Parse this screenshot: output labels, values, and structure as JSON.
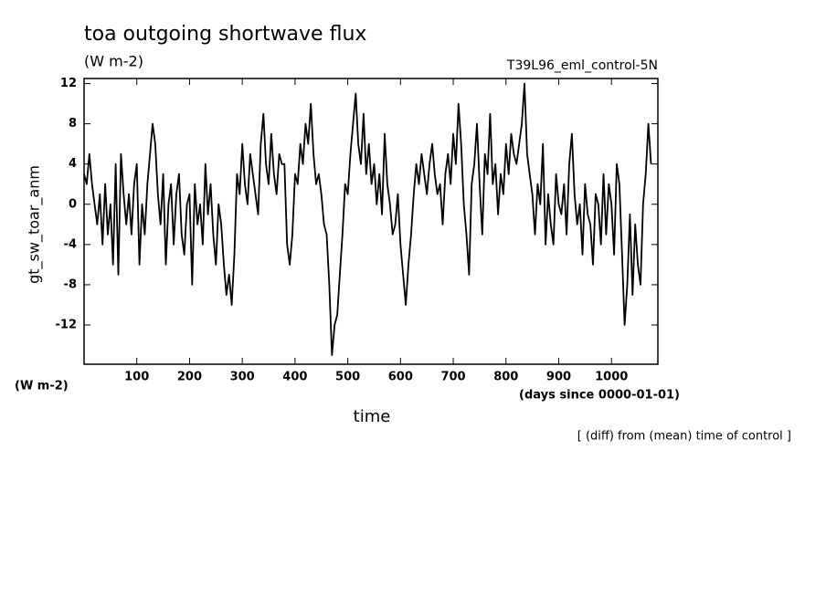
{
  "chart_data": {
    "type": "line",
    "title": "toa outgoing shortwave flux",
    "subtitle": "(W m-2)",
    "run_label": "T39L96_eml_control-5N",
    "y_label": "gt_sw_toar_anm",
    "y_unit": "(W m-2)",
    "x_label": "time",
    "x_unit": "(days since 0000-01-01)",
    "note": "[ (diff) from (mean) time of control ]",
    "color": "#000000",
    "xlim": [
      0,
      1088
    ],
    "ylim": [
      -15.9,
      12.5
    ],
    "xticks": [
      100,
      200,
      300,
      400,
      500,
      600,
      700,
      800,
      900,
      1000
    ],
    "yticks": [
      -12,
      -8,
      -4,
      0,
      4,
      8,
      12
    ],
    "x": [
      0,
      5,
      10,
      15,
      20,
      25,
      30,
      35,
      40,
      45,
      50,
      55,
      60,
      65,
      70,
      75,
      80,
      85,
      90,
      95,
      100,
      105,
      110,
      115,
      120,
      125,
      130,
      135,
      140,
      145,
      150,
      155,
      160,
      165,
      170,
      175,
      180,
      185,
      190,
      195,
      200,
      205,
      210,
      215,
      220,
      225,
      230,
      235,
      240,
      245,
      250,
      255,
      260,
      265,
      270,
      275,
      280,
      285,
      290,
      295,
      300,
      305,
      310,
      315,
      320,
      325,
      330,
      335,
      340,
      345,
      350,
      355,
      360,
      365,
      370,
      375,
      380,
      385,
      390,
      395,
      400,
      405,
      410,
      415,
      420,
      425,
      430,
      435,
      440,
      445,
      450,
      455,
      460,
      465,
      470,
      475,
      480,
      485,
      490,
      495,
      500,
      505,
      510,
      515,
      520,
      525,
      530,
      535,
      540,
      545,
      550,
      555,
      560,
      565,
      570,
      575,
      580,
      585,
      590,
      595,
      600,
      605,
      610,
      615,
      620,
      625,
      630,
      635,
      640,
      645,
      650,
      655,
      660,
      665,
      670,
      675,
      680,
      685,
      690,
      695,
      700,
      705,
      710,
      715,
      720,
      725,
      730,
      735,
      740,
      745,
      750,
      755,
      760,
      765,
      770,
      775,
      780,
      785,
      790,
      795,
      800,
      805,
      810,
      815,
      820,
      825,
      830,
      835,
      840,
      845,
      850,
      855,
      860,
      865,
      870,
      875,
      880,
      885,
      890,
      895,
      900,
      905,
      910,
      915,
      920,
      925,
      930,
      935,
      940,
      945,
      950,
      955,
      960,
      965,
      970,
      975,
      980,
      985,
      990,
      995,
      1000,
      1005,
      1010,
      1015,
      1020,
      1025,
      1030,
      1035,
      1040,
      1045,
      1050,
      1055,
      1060,
      1065,
      1070,
      1075
    ],
    "values": [
      3,
      2,
      5,
      2,
      0,
      -2,
      1,
      -4,
      2,
      -3,
      0,
      -6,
      4,
      -7,
      5,
      1,
      -2,
      1,
      -3,
      2,
      4,
      -6,
      0,
      -3,
      2,
      5,
      8,
      6,
      1,
      -2,
      3,
      -6,
      0,
      2,
      -4,
      1,
      3,
      -3,
      -5,
      0,
      1,
      -8,
      2,
      -2,
      0,
      -4,
      4,
      -1,
      2,
      -3,
      -6,
      0,
      -2,
      -6,
      -9,
      -7,
      -10,
      -5,
      3,
      1,
      6,
      2,
      0,
      5,
      3,
      1,
      -1,
      6,
      9,
      4,
      2,
      7,
      3,
      1,
      5,
      4,
      4,
      -4,
      -6,
      -3,
      3,
      2,
      6,
      4,
      8,
      6,
      10,
      5,
      2,
      3,
      1,
      -2,
      -3,
      -8,
      -15,
      -12,
      -11,
      -7,
      -3,
      2,
      1,
      5,
      8,
      11,
      6,
      4,
      9,
      3,
      6,
      2,
      4,
      0,
      3,
      -1,
      7,
      2,
      0,
      -3,
      -2,
      1,
      -4,
      -7,
      -10,
      -6,
      -3,
      1,
      4,
      2,
      5,
      3,
      1,
      4,
      6,
      3,
      1,
      2,
      -2,
      3,
      5,
      2,
      7,
      4,
      10,
      6,
      0,
      -3,
      -7,
      2,
      4,
      8,
      2,
      -3,
      5,
      3,
      9,
      2,
      4,
      -1,
      3,
      1,
      6,
      3,
      7,
      5,
      4,
      6,
      8,
      12,
      5,
      3,
      1,
      -3,
      2,
      0,
      6,
      -4,
      1,
      -2,
      -4,
      3,
      0,
      -1,
      2,
      -3,
      4,
      7,
      1,
      -2,
      0,
      -5,
      2,
      -1,
      -2,
      -6,
      1,
      0,
      -4,
      3,
      -3,
      2,
      0,
      -5,
      4,
      2,
      -5,
      -12,
      -8,
      -1,
      -9,
      -2,
      -6,
      -8,
      0,
      3,
      8,
      4
    ]
  }
}
